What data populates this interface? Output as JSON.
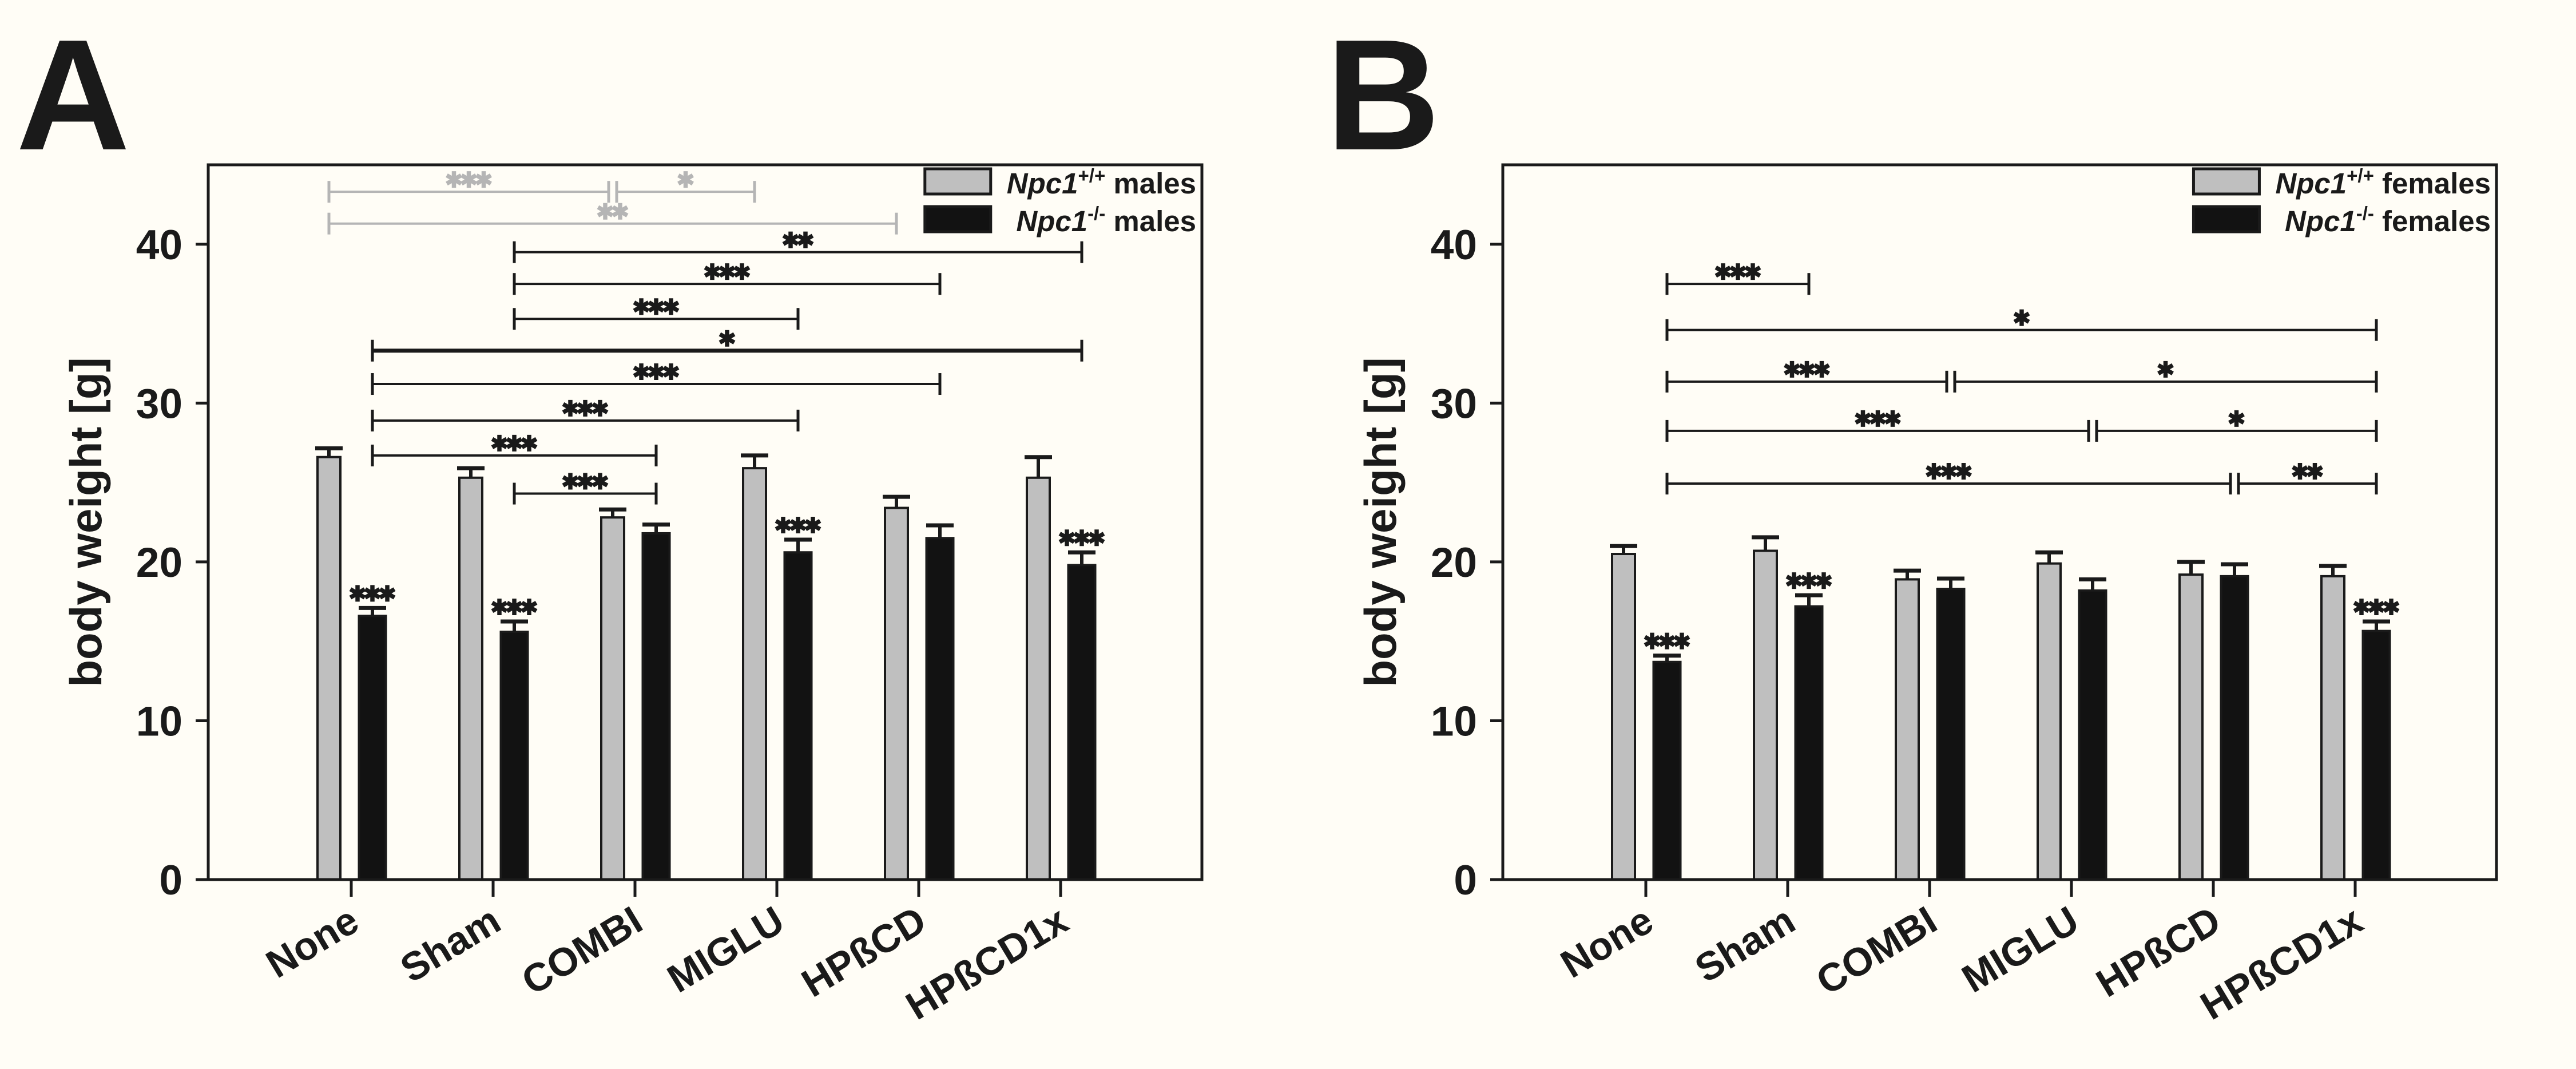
{
  "figure": {
    "background": "#fffdf6",
    "panel_letters": [
      "A",
      "B"
    ]
  },
  "colors": {
    "wt_fill": "#bfbfbf",
    "ko_fill": "#121212",
    "outline": "#1a1a1a",
    "gray_annotation": "#b5b5b5"
  },
  "chart_data": [
    {
      "type": "bar",
      "panel_label": "A",
      "ylabel": "body weight [g]",
      "ylim": [
        0,
        45
      ],
      "yticks": [
        "0",
        "10",
        "20",
        "30",
        "40"
      ],
      "grid": "off",
      "legend_position": "top-right",
      "categories": [
        "None",
        "Sham",
        "COMBI",
        "MIGLU",
        "HPßCD",
        "HPßCD1x"
      ],
      "series": [
        {
          "name": "Npc1+/+ males",
          "gene": "Npc1",
          "genotype": "+/+",
          "cohort": "males",
          "color": "#bfbfbf",
          "values": [
            26.6,
            25.3,
            22.8,
            25.9,
            23.4,
            25.3
          ],
          "errors": [
            0.55,
            0.6,
            0.5,
            0.8,
            0.7,
            1.3
          ]
        },
        {
          "name": "Npc1-/- males",
          "gene": "Npc1",
          "genotype": "-/-",
          "cohort": "males",
          "color": "#121212",
          "values": [
            16.6,
            15.6,
            21.8,
            20.6,
            21.5,
            19.8
          ],
          "errors": [
            0.5,
            0.65,
            0.55,
            0.8,
            0.8,
            0.8
          ]
        }
      ],
      "bar_annotations": [
        {
          "category": "None",
          "series": 1,
          "label": "***"
        },
        {
          "category": "Sham",
          "series": 1,
          "label": "***"
        },
        {
          "category": "MIGLU",
          "series": 1,
          "label": "***"
        },
        {
          "category": "HPßCD1x",
          "series": 1,
          "label": "***"
        }
      ],
      "comparisons": [
        {
          "from": {
            "category": "None",
            "series": 0
          },
          "to": {
            "category": "COMBI",
            "series": 0
          },
          "label": "***",
          "level": 43.3,
          "style": "gray"
        },
        {
          "from": {
            "category": "COMBI",
            "series": 0
          },
          "to": {
            "category": "MIGLU",
            "series": 0
          },
          "label": "*",
          "level": 43.3,
          "style": "gray"
        },
        {
          "from": {
            "category": "None",
            "series": 0
          },
          "to": {
            "category": "HPßCD",
            "series": 0
          },
          "label": "**",
          "level": 41.3,
          "style": "gray"
        },
        {
          "from": {
            "category": "Sham",
            "series": 1
          },
          "to": {
            "category": "HPßCD1x",
            "series": 1
          },
          "label": "**",
          "level": 39.5,
          "style": "black"
        },
        {
          "from": {
            "category": "Sham",
            "series": 1
          },
          "to": {
            "category": "HPßCD",
            "series": 1
          },
          "label": "***",
          "level": 37.5,
          "style": "black"
        },
        {
          "from": {
            "category": "Sham",
            "series": 1
          },
          "to": {
            "category": "MIGLU",
            "series": 1
          },
          "label": "***",
          "level": 35.3,
          "style": "black"
        },
        {
          "from": {
            "category": "None",
            "series": 1
          },
          "to": {
            "category": "HPßCD1x",
            "series": 1
          },
          "label": "*",
          "level": 33.3,
          "style": "black",
          "bold": true
        },
        {
          "from": {
            "category": "None",
            "series": 1
          },
          "to": {
            "category": "HPßCD",
            "series": 1
          },
          "label": "***",
          "level": 31.2,
          "style": "black"
        },
        {
          "from": {
            "category": "None",
            "series": 1
          },
          "to": {
            "category": "MIGLU",
            "series": 1
          },
          "label": "***",
          "level": 28.9,
          "style": "black"
        },
        {
          "from": {
            "category": "None",
            "series": 1
          },
          "to": {
            "category": "COMBI",
            "series": 1
          },
          "label": "***",
          "level": 26.7,
          "style": "black"
        },
        {
          "from": {
            "category": "Sham",
            "series": 1
          },
          "to": {
            "category": "COMBI",
            "series": 1
          },
          "label": "***",
          "level": 24.3,
          "style": "black"
        }
      ]
    },
    {
      "type": "bar",
      "panel_label": "B",
      "ylabel": "body weight [g]",
      "ylim": [
        0,
        45
      ],
      "yticks": [
        "0",
        "10",
        "20",
        "30",
        "40"
      ],
      "grid": "off",
      "legend_position": "top-right",
      "categories": [
        "None",
        "Sham",
        "COMBI",
        "MIGLU",
        "HPßCD",
        "HPßCD1x"
      ],
      "series": [
        {
          "name": "Npc1+/+ females",
          "gene": "Npc1",
          "genotype": "+/+",
          "cohort": "females",
          "color": "#bfbfbf",
          "values": [
            20.5,
            20.7,
            18.9,
            19.9,
            19.2,
            19.1
          ],
          "errors": [
            0.5,
            0.85,
            0.55,
            0.7,
            0.8,
            0.65
          ]
        },
        {
          "name": "Npc1-/- females",
          "gene": "Npc1",
          "genotype": "-/-",
          "cohort": "females",
          "color": "#121212",
          "values": [
            13.7,
            17.2,
            18.3,
            18.2,
            19.1,
            15.65
          ],
          "errors": [
            0.4,
            0.7,
            0.65,
            0.7,
            0.75,
            0.6
          ]
        }
      ],
      "bar_annotations": [
        {
          "category": "None",
          "series": 1,
          "label": "***"
        },
        {
          "category": "Sham",
          "series": 1,
          "label": "***"
        },
        {
          "category": "HPßCD1x",
          "series": 1,
          "label": "***"
        }
      ],
      "comparisons": [
        {
          "from": {
            "category": "None",
            "series": 1
          },
          "to": {
            "category": "Sham",
            "series": 1
          },
          "label": "***",
          "level": 37.5,
          "style": "black"
        },
        {
          "from": {
            "category": "None",
            "series": 1
          },
          "to": {
            "category": "HPßCD1x",
            "series": 1
          },
          "label": "*",
          "level": 34.6,
          "style": "black"
        },
        {
          "from": {
            "category": "None",
            "series": 1
          },
          "to": {
            "category": "COMBI",
            "series": 1
          },
          "label": "***",
          "level": 31.35,
          "style": "black"
        },
        {
          "from": {
            "category": "COMBI",
            "series": 1
          },
          "to": {
            "category": "HPßCD1x",
            "series": 1
          },
          "label": "*",
          "level": 31.35,
          "style": "black"
        },
        {
          "from": {
            "category": "None",
            "series": 1
          },
          "to": {
            "category": "MIGLU",
            "series": 1
          },
          "label": "***",
          "level": 28.25,
          "style": "black"
        },
        {
          "from": {
            "category": "MIGLU",
            "series": 1
          },
          "to": {
            "category": "HPßCD1x",
            "series": 1
          },
          "label": "*",
          "level": 28.25,
          "style": "black"
        },
        {
          "from": {
            "category": "None",
            "series": 1
          },
          "to": {
            "category": "HPßCD",
            "series": 1
          },
          "label": "***",
          "level": 24.93,
          "style": "black"
        },
        {
          "from": {
            "category": "HPßCD",
            "series": 1
          },
          "to": {
            "category": "HPßCD1x",
            "series": 1
          },
          "label": "**",
          "level": 24.93,
          "style": "black"
        }
      ]
    }
  ]
}
